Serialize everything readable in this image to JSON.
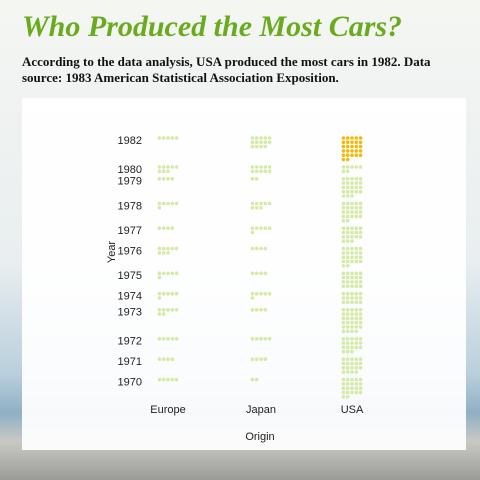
{
  "chart_data": {
    "type": "dot",
    "title": "Who Produced the Most Cars?",
    "subtitle": "According to the data analysis, USA produced the most cars in 1982. Data source: 1983 American Statistical Association Exposition.",
    "y_label": "Year",
    "x_label": "Origin",
    "categories": [
      "1982",
      "1980",
      "1979",
      "1978",
      "1977",
      "1976",
      "1975",
      "1974",
      "1973",
      "1972",
      "1971",
      "1970"
    ],
    "series": [
      {
        "name": "Europe",
        "color": "#d4eaa6",
        "values": [
          5,
          8,
          4,
          6,
          4,
          8,
          6,
          6,
          7,
          5,
          4,
          5
        ]
      },
      {
        "name": "Japan",
        "color": "#d4eaa6",
        "values": [
          14,
          10,
          2,
          8,
          6,
          4,
          4,
          6,
          4,
          5,
          4,
          2
        ]
      },
      {
        "name": "USA",
        "color": "#d4eaa6",
        "values": [
          27,
          7,
          23,
          22,
          18,
          22,
          20,
          15,
          29,
          18,
          19,
          22
        ]
      }
    ],
    "highlight": {
      "category": "1982",
      "series": "USA",
      "color": "#f2b90f"
    }
  }
}
